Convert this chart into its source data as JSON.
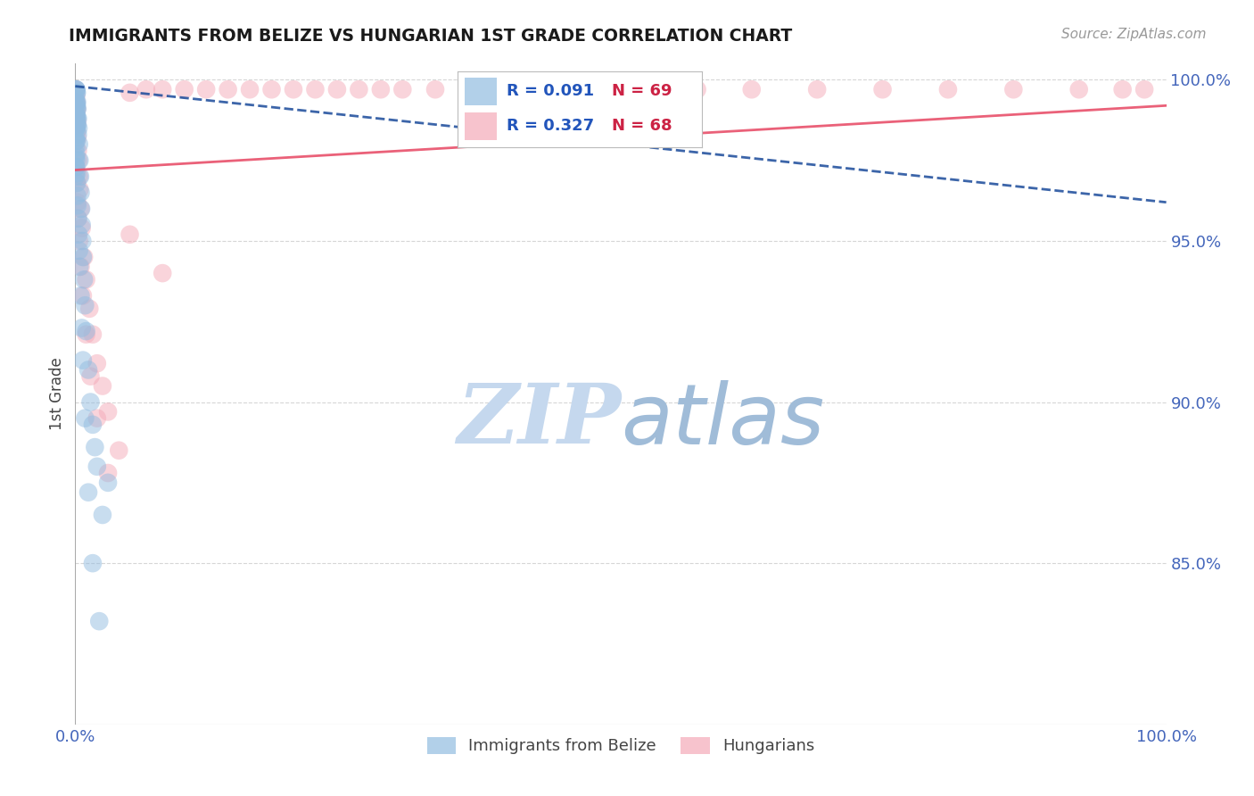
{
  "title": "IMMIGRANTS FROM BELIZE VS HUNGARIAN 1ST GRADE CORRELATION CHART",
  "source_text": "Source: ZipAtlas.com",
  "ylabel": "1st Grade",
  "y_tick_labels_right": [
    "100.0%",
    "95.0%",
    "90.0%",
    "85.0%"
  ],
  "y_tick_vals_right": [
    1.0,
    0.95,
    0.9,
    0.85
  ],
  "legend_labels": [
    "Immigrants from Belize",
    "Hungarians"
  ],
  "blue_R": "R = 0.091",
  "blue_N": "N = 69",
  "pink_R": "R = 0.327",
  "pink_N": "N = 68",
  "blue_color": "#92bce0",
  "pink_color": "#f4aab8",
  "blue_line_color": "#1a4a9a",
  "pink_line_color": "#e8506a",
  "title_color": "#1a1a1a",
  "axis_label_color": "#444444",
  "tick_color": "#4466bb",
  "grid_color": "#cccccc",
  "watermark_zip_color": "#c5d8ee",
  "watermark_atlas_color": "#a0bcd8",
  "legend_R_color": "#2255bb",
  "legend_N_color": "#cc2244",
  "background_color": "#ffffff",
  "xlim": [
    0.0,
    1.0
  ],
  "ylim": [
    0.8,
    1.005
  ],
  "blue_line_x0": 0.0,
  "blue_line_y0": 0.998,
  "blue_line_x1": 1.0,
  "blue_line_y1": 0.962,
  "pink_line_x0": 0.0,
  "pink_line_y0": 0.972,
  "pink_line_x1": 1.0,
  "pink_line_y1": 0.992,
  "blue_scatter_x": [
    0.0005,
    0.0005,
    0.0005,
    0.0005,
    0.0005,
    0.0005,
    0.0005,
    0.0005,
    0.0005,
    0.0005,
    0.0008,
    0.0008,
    0.0008,
    0.0008,
    0.0008,
    0.001,
    0.001,
    0.001,
    0.001,
    0.001,
    0.0012,
    0.0012,
    0.0012,
    0.0015,
    0.0015,
    0.0015,
    0.0018,
    0.0018,
    0.002,
    0.002,
    0.0025,
    0.0025,
    0.003,
    0.0035,
    0.004,
    0.0045,
    0.005,
    0.0055,
    0.006,
    0.0065,
    0.007,
    0.008,
    0.009,
    0.01,
    0.012,
    0.014,
    0.016,
    0.018,
    0.02,
    0.025,
    0.0008,
    0.0008,
    0.001,
    0.0012,
    0.0015,
    0.0018,
    0.002,
    0.0025,
    0.003,
    0.0035,
    0.004,
    0.005,
    0.006,
    0.007,
    0.009,
    0.012,
    0.016,
    0.022,
    0.03
  ],
  "blue_scatter_y": [
    0.997,
    0.994,
    0.991,
    0.988,
    0.985,
    0.982,
    0.979,
    0.976,
    0.973,
    0.97,
    0.997,
    0.993,
    0.989,
    0.985,
    0.981,
    0.997,
    0.993,
    0.989,
    0.985,
    0.981,
    0.996,
    0.992,
    0.988,
    0.996,
    0.991,
    0.986,
    0.993,
    0.988,
    0.991,
    0.986,
    0.988,
    0.983,
    0.985,
    0.98,
    0.975,
    0.97,
    0.965,
    0.96,
    0.955,
    0.95,
    0.945,
    0.938,
    0.93,
    0.922,
    0.91,
    0.9,
    0.893,
    0.886,
    0.88,
    0.865,
    0.977,
    0.973,
    0.975,
    0.971,
    0.968,
    0.964,
    0.961,
    0.957,
    0.952,
    0.947,
    0.942,
    0.933,
    0.923,
    0.913,
    0.895,
    0.872,
    0.85,
    0.832,
    0.875
  ],
  "pink_scatter_x": [
    0.0005,
    0.0005,
    0.0005,
    0.0008,
    0.0008,
    0.001,
    0.001,
    0.0012,
    0.0015,
    0.0015,
    0.0018,
    0.002,
    0.0025,
    0.003,
    0.0035,
    0.004,
    0.005,
    0.006,
    0.008,
    0.01,
    0.013,
    0.016,
    0.02,
    0.025,
    0.03,
    0.04,
    0.05,
    0.065,
    0.08,
    0.1,
    0.12,
    0.14,
    0.16,
    0.18,
    0.2,
    0.22,
    0.24,
    0.26,
    0.28,
    0.3,
    0.33,
    0.36,
    0.4,
    0.44,
    0.48,
    0.52,
    0.57,
    0.62,
    0.68,
    0.74,
    0.8,
    0.86,
    0.92,
    0.96,
    0.0008,
    0.0012,
    0.0018,
    0.0025,
    0.0035,
    0.005,
    0.007,
    0.01,
    0.014,
    0.02,
    0.03,
    0.05,
    0.08,
    0.98
  ],
  "pink_scatter_y": [
    0.997,
    0.993,
    0.989,
    0.995,
    0.99,
    0.993,
    0.988,
    0.986,
    0.991,
    0.984,
    0.987,
    0.982,
    0.978,
    0.975,
    0.97,
    0.966,
    0.96,
    0.954,
    0.945,
    0.938,
    0.929,
    0.921,
    0.912,
    0.905,
    0.897,
    0.885,
    0.996,
    0.997,
    0.997,
    0.997,
    0.997,
    0.997,
    0.997,
    0.997,
    0.997,
    0.997,
    0.997,
    0.997,
    0.997,
    0.997,
    0.997,
    0.997,
    0.997,
    0.997,
    0.997,
    0.997,
    0.997,
    0.997,
    0.997,
    0.997,
    0.997,
    0.997,
    0.997,
    0.997,
    0.972,
    0.968,
    0.962,
    0.957,
    0.95,
    0.942,
    0.933,
    0.921,
    0.908,
    0.895,
    0.878,
    0.952,
    0.94,
    0.997
  ]
}
